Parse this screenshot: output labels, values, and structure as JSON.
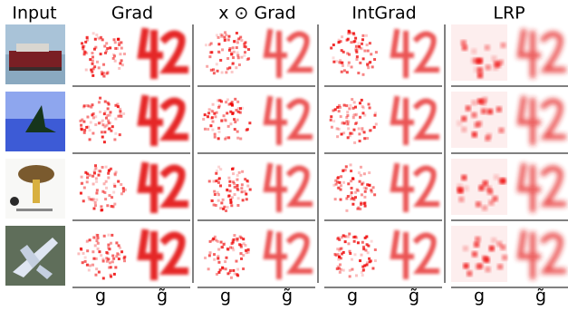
{
  "headers": [
    "Input",
    "Grad",
    "x ⊙ Grad",
    "IntGrad",
    "LRP"
  ],
  "footer": [
    [
      "g",
      "g̃"
    ],
    [
      "g",
      "g̃"
    ],
    [
      "g",
      "g̃"
    ],
    [
      "g",
      "g̃"
    ]
  ]
}
